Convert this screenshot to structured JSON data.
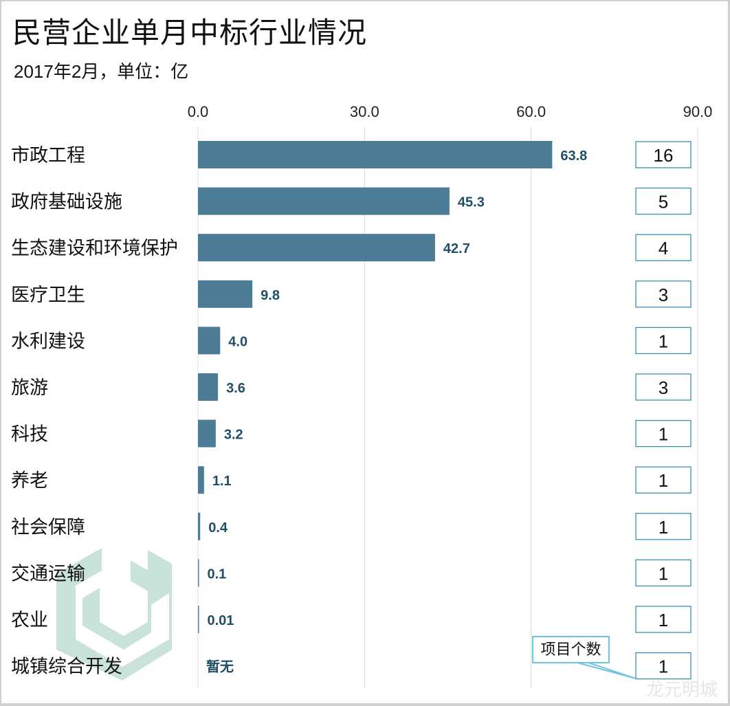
{
  "chart_data": {
    "type": "bar",
    "title": "民营企业单月中标行业情况",
    "subtitle": "2017年2月，单位：亿",
    "xlabel": "",
    "ylabel": "",
    "xlim": [
      0,
      90
    ],
    "ticks": [
      "0.0",
      "30.0",
      "60.0",
      "90.0"
    ],
    "tick_values": [
      0,
      30,
      60,
      90
    ],
    "grid": true,
    "categories": [
      "市政工程",
      "政府基础设施",
      "生态建设和环境保护",
      "医疗卫生",
      "水利建设",
      "旅游",
      "科技",
      "养老",
      "社会保障",
      "交通运输",
      "农业",
      "城镇综合开发"
    ],
    "values": [
      63.8,
      45.3,
      42.7,
      9.8,
      4.0,
      3.6,
      3.2,
      1.1,
      0.4,
      0.1,
      0.01,
      null
    ],
    "value_labels": [
      "63.8",
      "45.3",
      "42.7",
      "9.8",
      "4.0",
      "3.6",
      "3.2",
      "1.1",
      "0.4",
      "0.1",
      "0.01",
      "暂无"
    ],
    "project_counts": [
      "16",
      "5",
      "4",
      "3",
      "1",
      "3",
      "1",
      "1",
      "1",
      "1",
      "1",
      "1"
    ],
    "count_legend": "项目个数",
    "bar_color": "#4d7d96",
    "label_color": "#1f4e66",
    "box_color": "#3a8db0"
  },
  "watermark": "龙元明城"
}
